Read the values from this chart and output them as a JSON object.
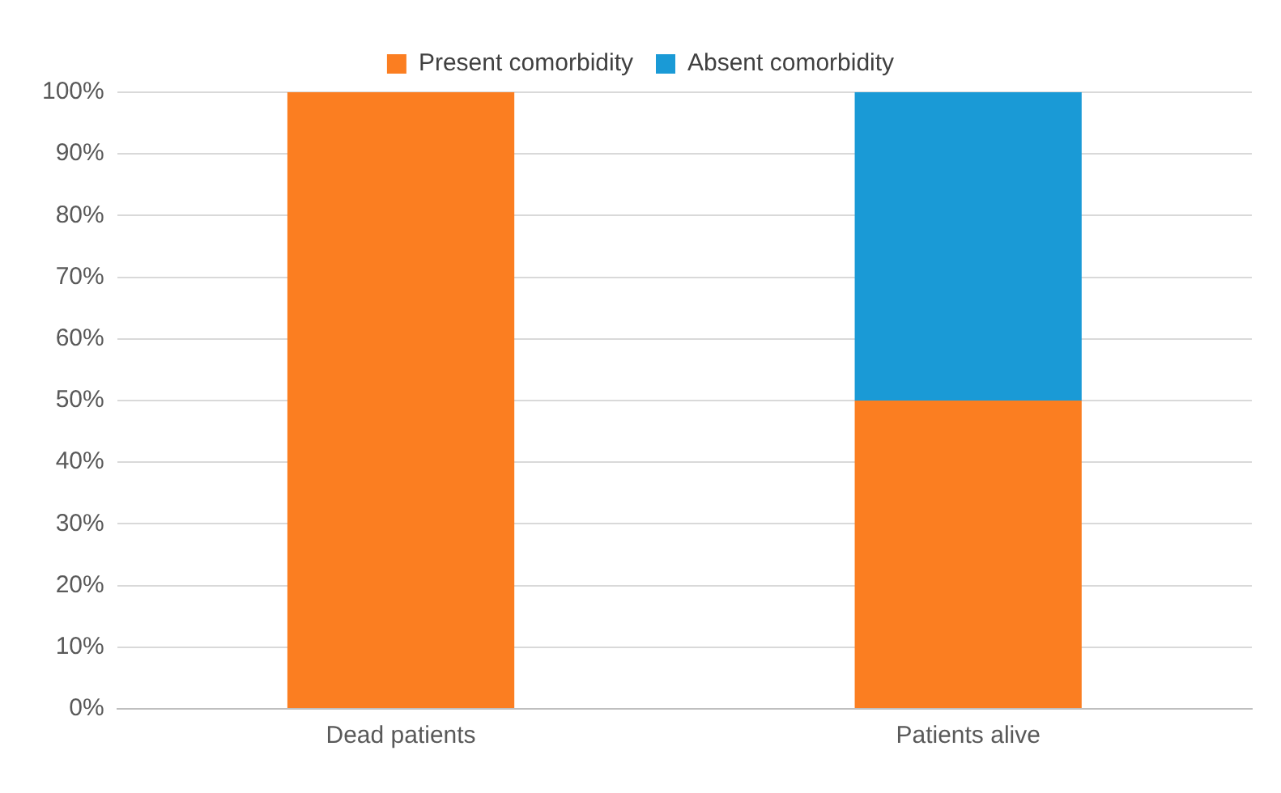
{
  "chart_data": {
    "type": "bar",
    "stacked": true,
    "categories": [
      "Dead patients",
      "Patients alive"
    ],
    "series": [
      {
        "name": "Present comorbidity",
        "color": "#fb7e21",
        "values": [
          100,
          50
        ]
      },
      {
        "name": "Absent comorbidity",
        "color": "#1a9ad6",
        "values": [
          0,
          50
        ]
      }
    ],
    "ylim": [
      0,
      100
    ],
    "yticks": [
      {
        "value": 0,
        "label": "0%"
      },
      {
        "value": 10,
        "label": "10%"
      },
      {
        "value": 20,
        "label": "20%"
      },
      {
        "value": 30,
        "label": "30%"
      },
      {
        "value": 40,
        "label": "40%"
      },
      {
        "value": 50,
        "label": "50%"
      },
      {
        "value": 60,
        "label": "60%"
      },
      {
        "value": 70,
        "label": "70%"
      },
      {
        "value": 80,
        "label": "80%"
      },
      {
        "value": 90,
        "label": "90%"
      },
      {
        "value": 100,
        "label": "100%"
      }
    ],
    "grid": "y",
    "legend": "top"
  }
}
